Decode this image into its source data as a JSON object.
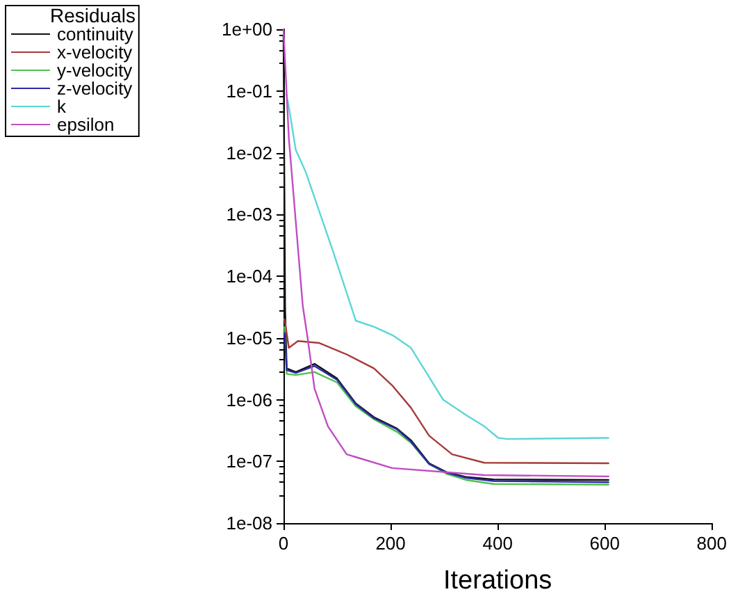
{
  "chart_data": {
    "type": "line",
    "xlabel": "Iterations",
    "legend_title": "Residuals",
    "legend": "top left",
    "grid": false,
    "marker": "none",
    "line_style": "solid",
    "log": "y",
    "xlim": [
      0,
      800
    ],
    "xticks": [
      0,
      200,
      400,
      600,
      800
    ],
    "ylim": [
      1e-08,
      1
    ],
    "yticks": [
      {
        "value": 1e-08,
        "label": "1e-08"
      },
      {
        "value": 1e-07,
        "label": "1e-07"
      },
      {
        "value": 1e-06,
        "label": "1e-06"
      },
      {
        "value": 1e-05,
        "label": "1e-05"
      },
      {
        "value": 0.0001,
        "label": "1e-04"
      },
      {
        "value": 0.001,
        "label": "1e-03"
      },
      {
        "value": 0.01,
        "label": "1e-02"
      },
      {
        "value": 0.1,
        "label": "1e-01"
      },
      {
        "value": 1,
        "label": "1e+00"
      }
    ],
    "series": [
      {
        "name": "continuity",
        "color": "#101010",
        "x": [
          0,
          3,
          6,
          23,
          58,
          100,
          135,
          169,
          212,
          238,
          272,
          306,
          341,
          392,
          607
        ],
        "values": [
          0.8,
          3e-05,
          3.2e-06,
          2.8e-06,
          3.8e-06,
          2.2e-06,
          8.7e-07,
          5.2e-07,
          3.4e-07,
          2.2e-07,
          9.3e-08,
          6.6e-08,
          5.6e-08,
          5.1e-08,
          5e-08
        ]
      },
      {
        "name": "x-velocity",
        "color": "#a83a3a",
        "x": [
          2,
          10,
          27,
          66,
          118,
          169,
          203,
          238,
          272,
          315,
          375,
          607
        ],
        "values": [
          2e-05,
          6.9e-06,
          8.9e-06,
          8.3e-06,
          5.4e-06,
          3.2e-06,
          1.7e-06,
          7.4e-07,
          2.6e-07,
          1.3e-07,
          9.5e-08,
          9.3e-08
        ]
      },
      {
        "name": "y-velocity",
        "color": "#4cc24c",
        "x": [
          2,
          6,
          23,
          58,
          100,
          135,
          169,
          212,
          238,
          272,
          306,
          341,
          392,
          607
        ],
        "values": [
          1.5e-05,
          2.6e-06,
          2.5e-06,
          2.8e-06,
          1.9e-06,
          7.8e-07,
          4.8e-07,
          3e-07,
          2e-07,
          9e-08,
          6.2e-08,
          5e-08,
          4.3e-08,
          4.2e-08
        ]
      },
      {
        "name": "z-velocity",
        "color": "#2a2aa8",
        "x": [
          2,
          6,
          23,
          58,
          100,
          135,
          169,
          212,
          238,
          272,
          306,
          341,
          392,
          607
        ],
        "values": [
          1.2e-05,
          3e-06,
          2.7e-06,
          3.5e-06,
          2.1e-06,
          8.4e-07,
          5e-07,
          3.3e-07,
          2.1e-07,
          9.1e-08,
          6.5e-08,
          5.4e-08,
          4.8e-08,
          4.6e-08
        ]
      },
      {
        "name": "k",
        "color": "#5cd6d6",
        "x": [
          5,
          10,
          23,
          41,
          92,
          126,
          135,
          170,
          204,
          238,
          264,
          298,
          341,
          375,
          401,
          418,
          607
        ],
        "values": [
          0.09,
          0.055,
          0.011,
          0.005,
          0.00026,
          3.3e-05,
          1.9e-05,
          1.5e-05,
          1.1e-05,
          6.9e-06,
          3e-06,
          1e-06,
          5.6e-07,
          3.7e-07,
          2.4e-07,
          2.3e-07,
          2.4e-07
        ]
      },
      {
        "name": "epsilon",
        "color": "#c24cc2",
        "x": [
          0,
          10,
          36,
          45,
          58,
          83,
          118,
          203,
          375,
          607
        ],
        "values": [
          1,
          0.017,
          3.3e-05,
          1e-05,
          1.5e-06,
          3.7e-07,
          1.3e-07,
          7.8e-08,
          6e-08,
          5.7e-08
        ]
      }
    ]
  }
}
